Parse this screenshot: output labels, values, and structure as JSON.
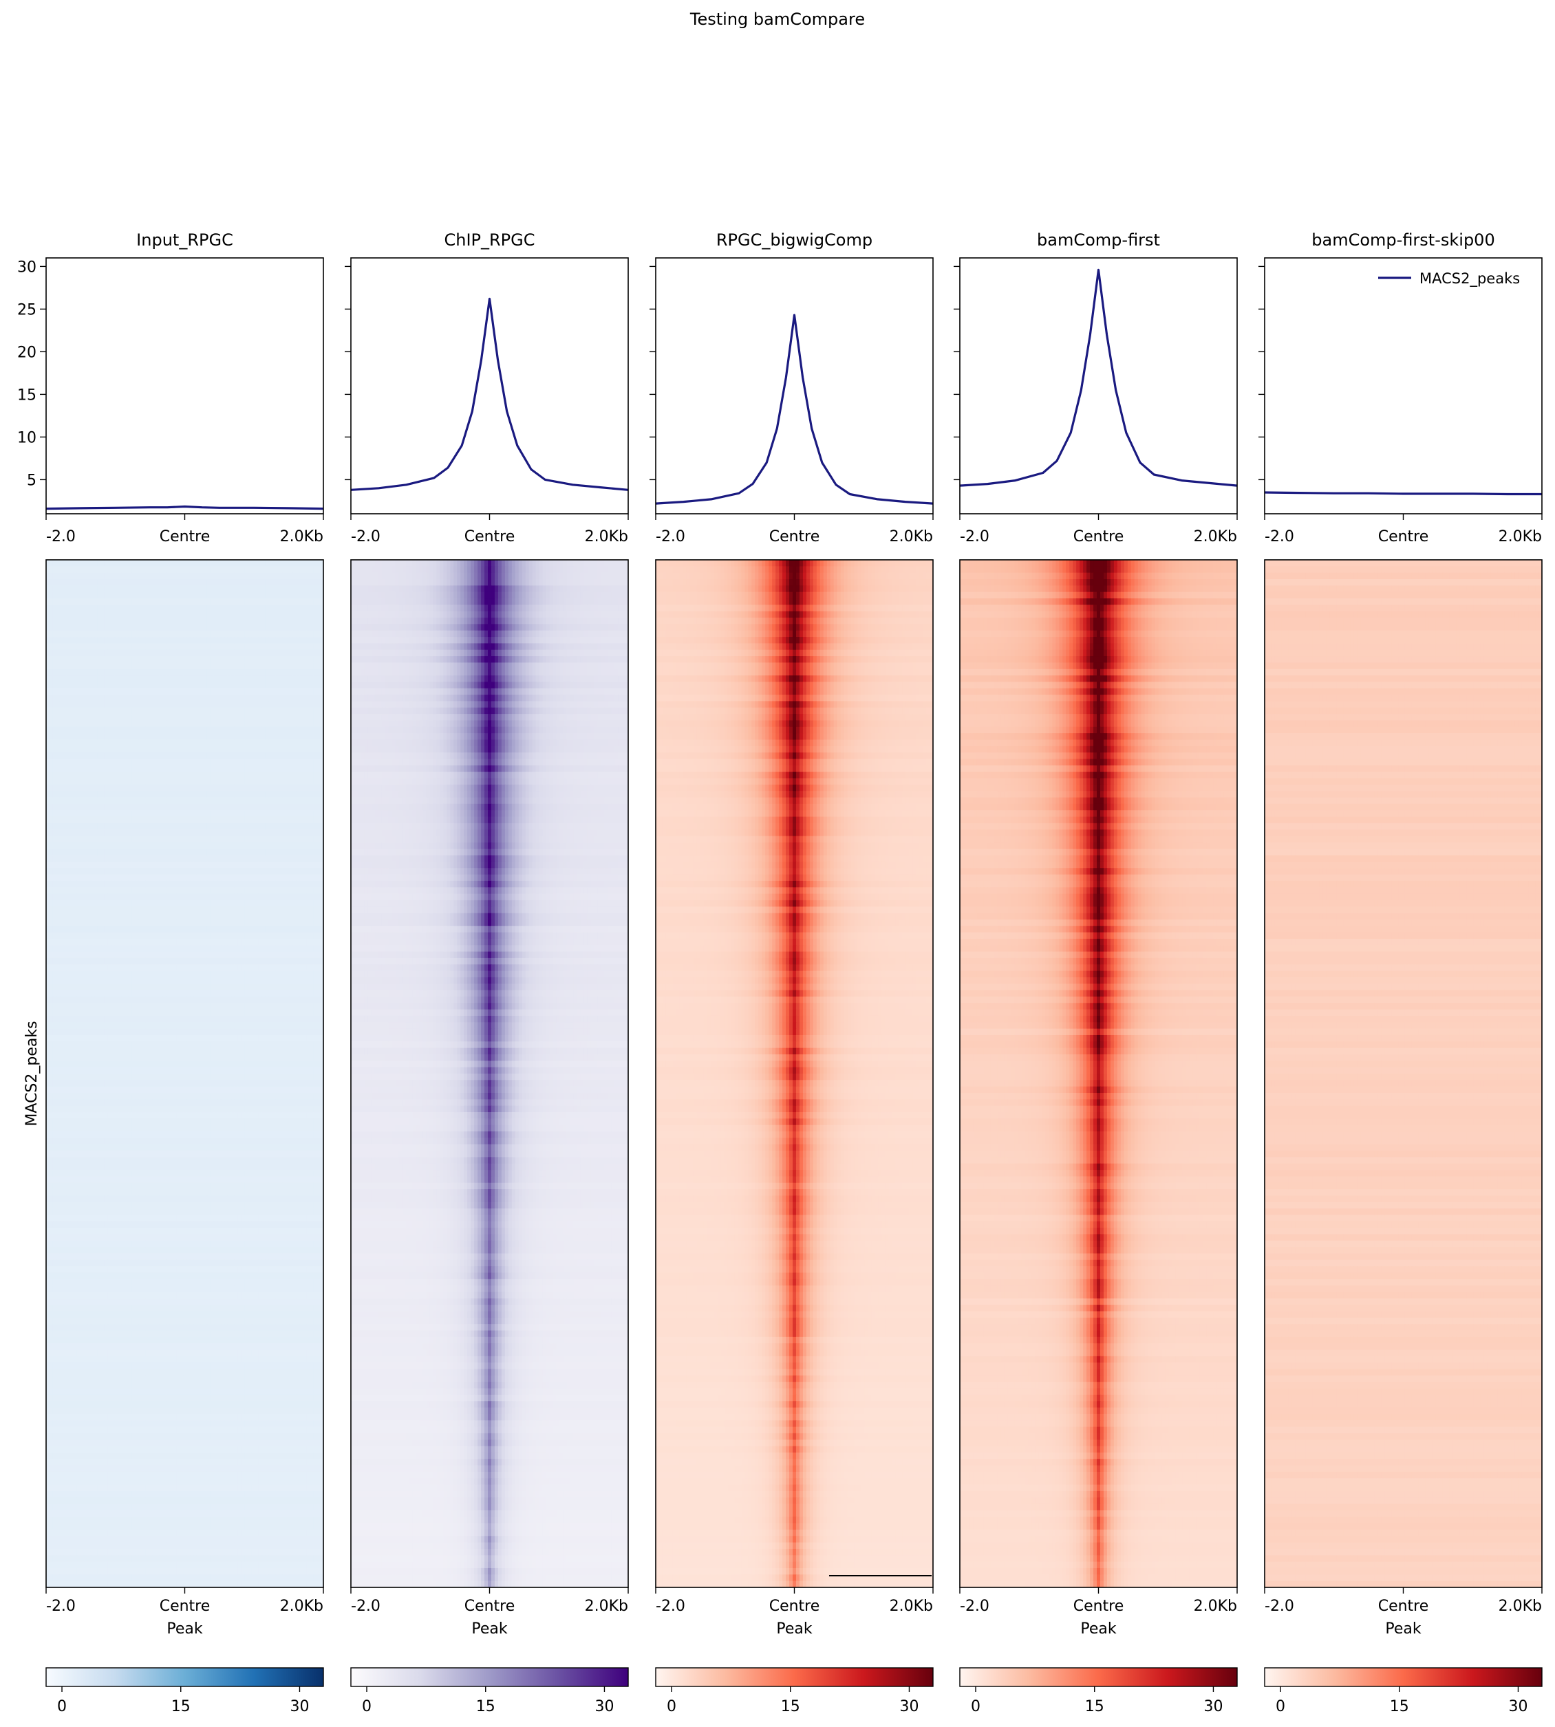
{
  "figure": {
    "title": "Testing bamCompare"
  },
  "chart_data": {
    "type": "heatmap",
    "title": "Testing bamCompare",
    "ylabel": "MACS2_peaks",
    "xlabel": "Peak",
    "xticks": [
      "-2.0",
      "Centre",
      "2.0Kb"
    ],
    "profile_ylim": [
      1,
      31
    ],
    "profile_yticks": [
      5,
      10,
      15,
      20,
      25,
      30
    ],
    "legend": {
      "label": "MACS2_peaks",
      "placement": "top-right",
      "color": "#1a1a80"
    },
    "line_color": "#1a1a80",
    "colorbar_ticks": [
      0,
      15,
      30
    ],
    "colorbar_range": [
      -2,
      33
    ],
    "panels": [
      {
        "name": "Input_RPGC",
        "colormap": [
          "#f7fbff",
          "#c6dbef",
          "#6baed6",
          "#2171b5",
          "#08306b"
        ],
        "profile": {
          "x": [
            -2.0,
            -1.5,
            -1.0,
            -0.5,
            -0.25,
            0.0,
            0.25,
            0.5,
            1.0,
            1.5,
            2.0
          ],
          "y": [
            1.6,
            1.65,
            1.7,
            1.75,
            1.75,
            1.85,
            1.75,
            1.7,
            1.7,
            1.65,
            1.6
          ]
        }
      },
      {
        "name": "ChIP_RPGC",
        "colormap": [
          "#fcfbfd",
          "#dadaeb",
          "#9e9ac8",
          "#6a51a3",
          "#3f007d"
        ],
        "profile": {
          "x": [
            -2.0,
            -1.6,
            -1.2,
            -0.8,
            -0.6,
            -0.4,
            -0.25,
            -0.12,
            0.0,
            0.12,
            0.25,
            0.4,
            0.6,
            0.8,
            1.2,
            1.6,
            2.0
          ],
          "y": [
            3.8,
            4.0,
            4.4,
            5.2,
            6.4,
            9.0,
            13.0,
            19.0,
            26.2,
            19.0,
            13.0,
            9.0,
            6.2,
            5.0,
            4.4,
            4.1,
            3.8
          ]
        }
      },
      {
        "name": "RPGC_bigwigComp",
        "colormap": [
          "#fff5f0",
          "#fcbba1",
          "#fb6a4a",
          "#cb181d",
          "#67000d"
        ],
        "profile": {
          "x": [
            -2.0,
            -1.6,
            -1.2,
            -0.8,
            -0.6,
            -0.4,
            -0.25,
            -0.12,
            0.0,
            0.12,
            0.25,
            0.4,
            0.6,
            0.8,
            1.2,
            1.6,
            2.0
          ],
          "y": [
            2.2,
            2.4,
            2.7,
            3.4,
            4.5,
            7.0,
            11.0,
            17.0,
            24.3,
            17.0,
            11.0,
            7.0,
            4.4,
            3.3,
            2.7,
            2.4,
            2.2
          ]
        }
      },
      {
        "name": "bamComp-first",
        "colormap": [
          "#fff5f0",
          "#fcbba1",
          "#fb6a4a",
          "#cb181d",
          "#67000d"
        ],
        "profile": {
          "x": [
            -2.0,
            -1.6,
            -1.2,
            -0.8,
            -0.6,
            -0.4,
            -0.25,
            -0.12,
            0.0,
            0.12,
            0.25,
            0.4,
            0.6,
            0.8,
            1.2,
            1.6,
            2.0
          ],
          "y": [
            4.3,
            4.5,
            4.9,
            5.8,
            7.2,
            10.5,
            15.5,
            22.0,
            29.6,
            22.0,
            15.5,
            10.5,
            7.0,
            5.6,
            4.9,
            4.6,
            4.3
          ]
        }
      },
      {
        "name": "bamComp-first-skip00",
        "colormap": [
          "#fff5f0",
          "#fcbba1",
          "#fb6a4a",
          "#cb181d",
          "#67000d"
        ],
        "profile": {
          "x": [
            -2.0,
            -1.5,
            -1.0,
            -0.5,
            0.0,
            0.5,
            1.0,
            1.5,
            2.0
          ],
          "y": [
            3.5,
            3.45,
            3.4,
            3.4,
            3.35,
            3.35,
            3.35,
            3.3,
            3.3
          ]
        }
      }
    ]
  }
}
